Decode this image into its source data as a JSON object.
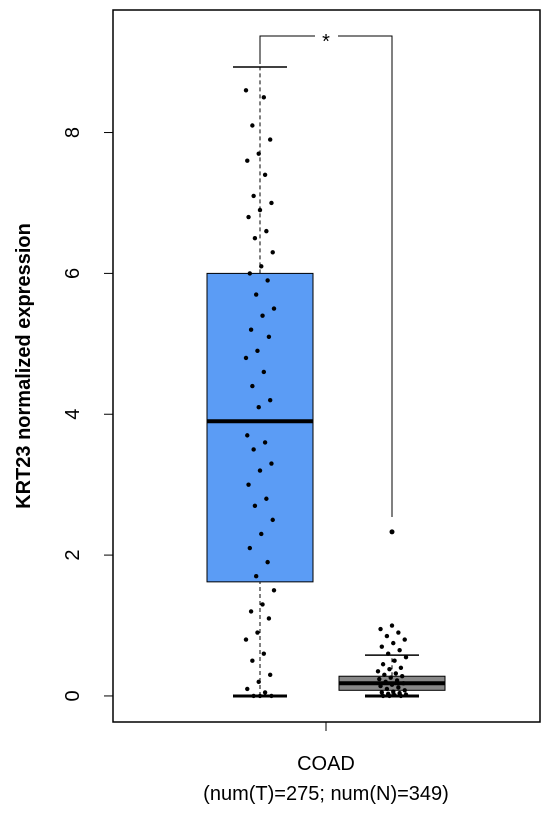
{
  "chart_data": {
    "type": "box",
    "ylabel": "KRT23 normalized expression",
    "categories": [
      "COAD"
    ],
    "subtitle": "(num(T)=275; num(N)=349)",
    "annotation": "*",
    "annotation_color": "#e0201b",
    "ylim": [
      -0.37,
      9.74
    ],
    "yticks": [
      0,
      2,
      4,
      6,
      8
    ],
    "groups": [
      {
        "color": "#5b9cf5",
        "min": 0,
        "q1": 1.62,
        "median": 3.9,
        "q3": 6.0,
        "max": 8.93,
        "outliers": [],
        "points": [
          8.6,
          8.5,
          8.1,
          7.9,
          7.7,
          7.6,
          7.4,
          7.1,
          7.0,
          6.9,
          6.8,
          6.6,
          6.5,
          6.3,
          6.1,
          6.0,
          5.9,
          5.7,
          5.5,
          5.4,
          5.2,
          5.1,
          4.9,
          4.8,
          4.6,
          4.4,
          4.2,
          4.1,
          3.7,
          3.6,
          3.5,
          3.3,
          3.2,
          3.0,
          2.8,
          2.7,
          2.5,
          2.3,
          2.1,
          1.9,
          1.7,
          1.5,
          1.3,
          1.2,
          1.1,
          0.9,
          0.8,
          0.6,
          0.5,
          0.3,
          0.2,
          0.1,
          0.05,
          0,
          0,
          0
        ]
      },
      {
        "color": "#888888",
        "min": 0,
        "q1": 0.08,
        "median": 0.18,
        "q3": 0.28,
        "max": 0.58,
        "outliers": [
          2.33
        ],
        "points": [
          1.0,
          0.95,
          0.9,
          0.85,
          0.8,
          0.75,
          0.7,
          0.65,
          0.6,
          0.55,
          0.5,
          0.45,
          0.4,
          0.38,
          0.35,
          0.32,
          0.3,
          0.28,
          0.26,
          0.24,
          0.22,
          0.2,
          0.18,
          0.16,
          0.14,
          0.12,
          0.1,
          0.08,
          0.06,
          0.05,
          0.04,
          0.03,
          0.02,
          0.01,
          0,
          0,
          0
        ]
      }
    ]
  }
}
